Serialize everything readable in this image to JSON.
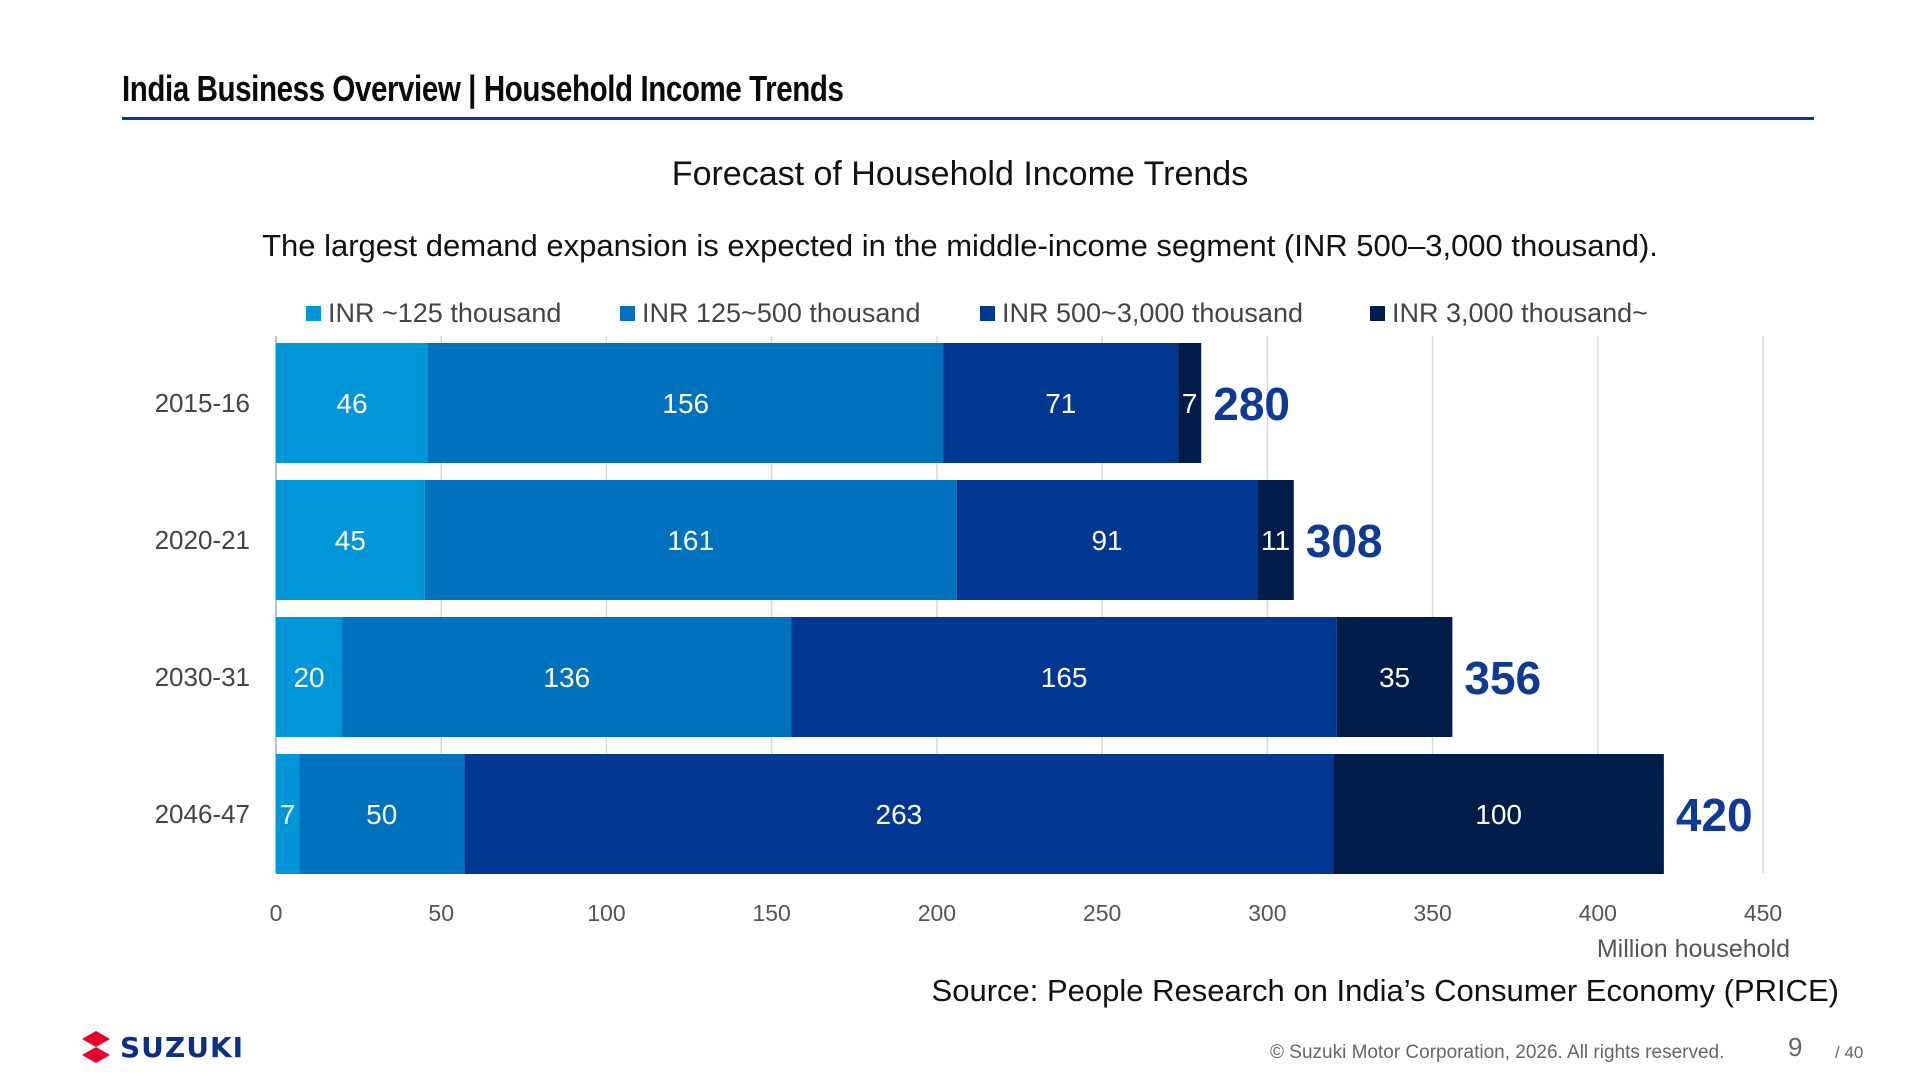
{
  "header": {
    "title": "India Business Overview | Household Income Trends"
  },
  "chart_data": {
    "type": "bar",
    "orientation": "horizontal",
    "stacked": true,
    "title": "Forecast of Household Income Trends",
    "subtitle": "The largest demand expansion is expected in the middle-income segment (INR 500–3,000 thousand).",
    "categories": [
      "2015-16",
      "2020-21",
      "2030-31",
      "2046-47"
    ],
    "series": [
      {
        "name": "INR ~125 thousand",
        "color": "#0096da",
        "values": [
          46,
          45,
          20,
          7
        ]
      },
      {
        "name": "INR 125~500 thousand",
        "color": "#0071bd",
        "values": [
          156,
          161,
          136,
          50
        ]
      },
      {
        "name": "INR 500~3,000  thousand",
        "color": "#003793",
        "values": [
          71,
          91,
          165,
          263
        ]
      },
      {
        "name": "INR 3,000  thousand~",
        "color": "#001c4a",
        "values": [
          7,
          11,
          35,
          100
        ]
      }
    ],
    "totals": [
      280,
      308,
      356,
      420
    ],
    "total_color": "#0c3a94",
    "xlim": [
      0,
      450
    ],
    "xticks": [
      0,
      50,
      100,
      150,
      200,
      250,
      300,
      350,
      400,
      450
    ],
    "xlabel": "Million household",
    "grid": true,
    "legend": "top"
  },
  "source": "Source: People Research on India’s Consumer Economy (PRICE)",
  "footer": {
    "brand": "SUZUKI",
    "copyright": "© Suzuki Motor Corporation, 2026. All rights reserved.",
    "page": "9",
    "total": "/ 40"
  }
}
